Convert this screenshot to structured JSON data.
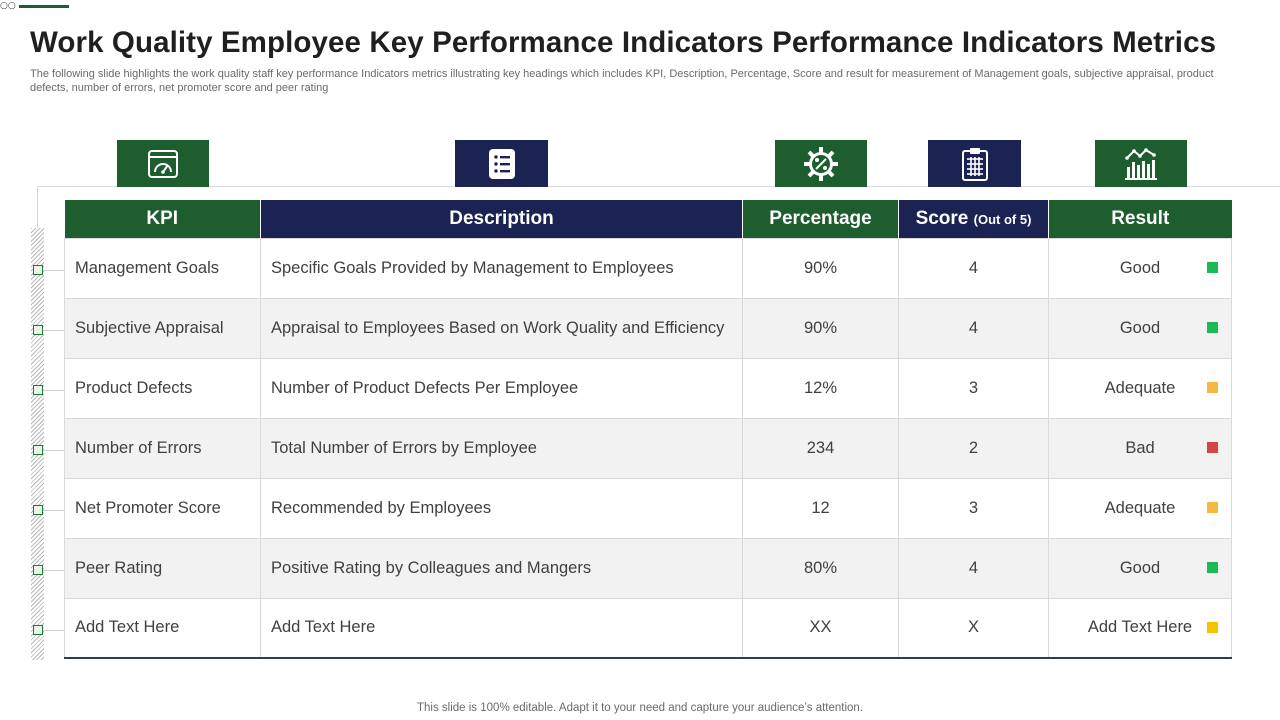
{
  "header": {
    "title": "Work Quality Employee Key Performance Indicators Performance Indicators Metrics",
    "subtitle": "The following slide highlights the work quality staff key performance Indicators metrics illustrating key headings which includes KPI, Description, Percentage, Score and result for measurement of Management goals, subjective appraisal, product defects, number of errors, net promoter score and peer rating"
  },
  "icons": [
    "dashboard-gauge-icon",
    "list-icon",
    "gear-percent-icon",
    "clipboard-icon",
    "bar-chart-icon"
  ],
  "table": {
    "headers": {
      "kpi": "KPI",
      "description": "Description",
      "percentage": "Percentage",
      "score": "Score",
      "score_suffix": "(Out of 5)",
      "result": "Result"
    },
    "rows": [
      {
        "kpi": "Management Goals",
        "description": "Specific Goals Provided by Management to Employees",
        "percentage": "90%",
        "score": "4",
        "result": "Good",
        "status_color": "#1db954"
      },
      {
        "kpi": "Subjective Appraisal",
        "description": "Appraisal to Employees Based on Work Quality  and Efficiency",
        "percentage": "90%",
        "score": "4",
        "result": "Good",
        "status_color": "#1db954"
      },
      {
        "kpi": "Product Defects",
        "description": "Number of Product Defects Per Employee",
        "percentage": "12%",
        "score": "3",
        "result": "Adequate",
        "status_color": "#f4b942"
      },
      {
        "kpi": "Number of Errors",
        "description": "Total Number  of Errors by Employee",
        "percentage": "234",
        "score": "2",
        "result": "Bad",
        "status_color": "#d64541"
      },
      {
        "kpi": "Net Promoter Score",
        "description": "Recommended by Employees",
        "percentage": "12",
        "score": "3",
        "result": "Adequate",
        "status_color": "#f4b942"
      },
      {
        "kpi": "Peer Rating",
        "description": "Positive Rating by Colleagues and Mangers",
        "percentage": "80%",
        "score": "4",
        "result": "Good",
        "status_color": "#1db954"
      },
      {
        "kpi": "Add Text Here",
        "description": "Add Text Here",
        "percentage": "XX",
        "score": "X",
        "result": "Add Text Here",
        "status_color": "#f5c400"
      }
    ]
  },
  "colors": {
    "green": "#1e5e2e",
    "navy": "#1b2352"
  },
  "footer": "This slide is 100% editable. Adapt it to your need and capture your audience’s attention."
}
